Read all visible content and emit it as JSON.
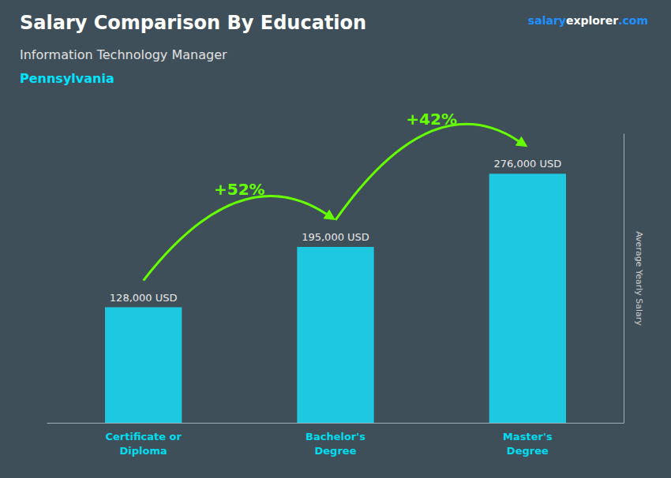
{
  "chart_data": {
    "type": "bar",
    "title": "Salary Comparison By Education",
    "subtitle": "Information Technology Manager",
    "annotations": [
      "Pennsylvania"
    ],
    "watermark": [
      {
        "text": "salary",
        "color": "#1e90ff"
      },
      {
        "text": "explorer",
        "color": "#ffffff"
      },
      {
        "text": ".com",
        "color": "#1e90ff"
      }
    ],
    "ylabel": "Average Yearly Salary",
    "categories": [
      "Certificate or\nDiploma",
      "Bachelor's\nDegree",
      "Master's\nDegree"
    ],
    "values": [
      128000,
      195000,
      276000
    ],
    "value_labels": [
      "128,000 USD",
      "195,000 USD",
      "276,000 USD"
    ],
    "data_labels": true,
    "color": "#1ec8e0",
    "arrows": [
      {
        "text": "+52%",
        "color": "#66ff00"
      },
      {
        "text": "+42%",
        "color": "#66ff00"
      }
    ],
    "ylim": [
      0,
      320000
    ],
    "tick_labels": "x",
    "grid": false
  }
}
